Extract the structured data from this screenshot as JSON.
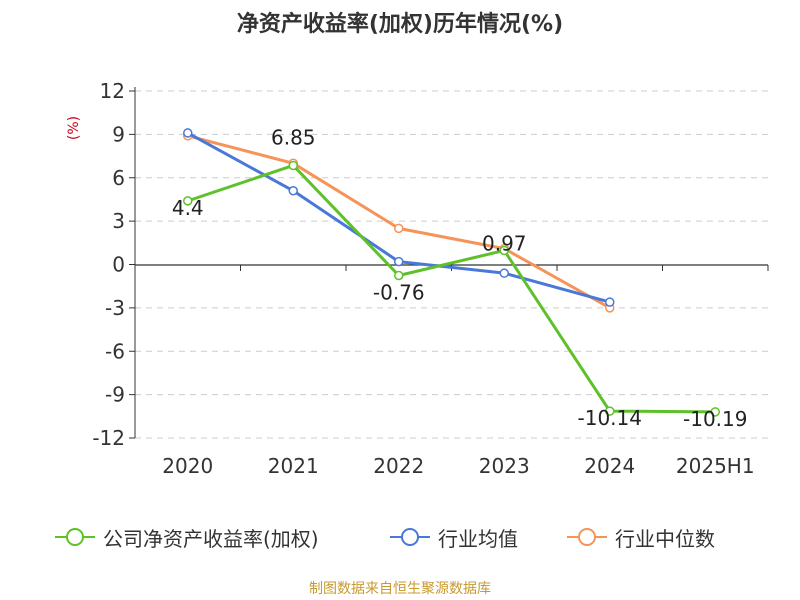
{
  "chart_data": {
    "type": "line",
    "title": "净资产收益率(加权)历年情况(%)",
    "ylabel": "(%)",
    "categories": [
      "2020",
      "2021",
      "2022",
      "2023",
      "2024",
      "2025H1"
    ],
    "ylim": [
      -12,
      12
    ],
    "yticks": [
      12,
      9,
      6,
      3,
      0,
      -3,
      -6,
      -9,
      -12
    ],
    "grid": true,
    "legend_position": "bottom",
    "series": [
      {
        "name": "公司净资产收益率(加权)",
        "color": "#5ec12a",
        "values": [
          4.4,
          6.85,
          -0.76,
          0.97,
          -10.14,
          -10.19
        ],
        "labels": [
          "4.4",
          "6.85",
          "-0.76",
          "0.97",
          "-10.14",
          "-10.19"
        ]
      },
      {
        "name": "行业均值",
        "color": "#4a78d8",
        "values": [
          9.1,
          5.1,
          0.2,
          -0.6,
          -2.6,
          null
        ]
      },
      {
        "name": "行业中位数",
        "color": "#f59358",
        "values": [
          8.9,
          7.0,
          2.5,
          1.1,
          -3.0,
          null
        ]
      }
    ]
  },
  "source_note": "制图数据来自恒生聚源数据库"
}
